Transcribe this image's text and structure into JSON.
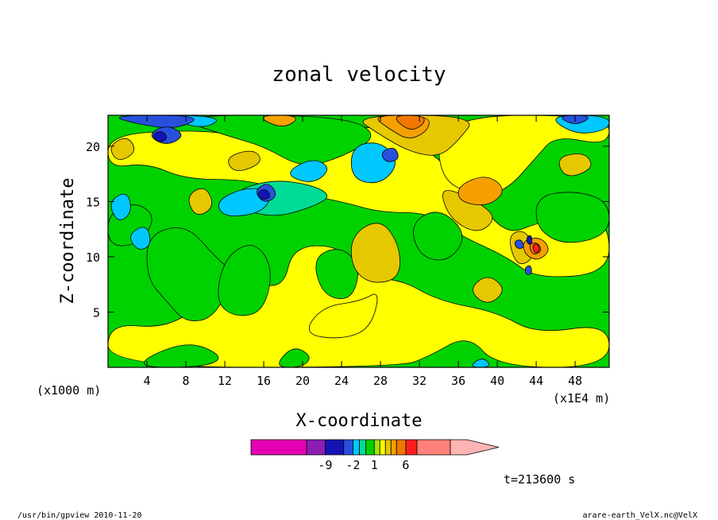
{
  "chart_data": {
    "type": "heatmap",
    "title": "zonal velocity",
    "xlabel": "X-coordinate",
    "ylabel": "Z-coordinate",
    "x_unit_left": "(x1000 m)",
    "x_unit_right": "(x1E4 m)",
    "xticks": [
      "4",
      "8",
      "12",
      "16",
      "20",
      "24",
      "28",
      "32",
      "36",
      "40",
      "44",
      "48"
    ],
    "xtick_values": [
      4,
      8,
      12,
      16,
      20,
      24,
      28,
      32,
      36,
      40,
      44,
      48
    ],
    "yticks": [
      "5",
      "10",
      "15",
      "20"
    ],
    "ytick_values": [
      5,
      10,
      15,
      20
    ],
    "xlim": [
      0,
      51.5
    ],
    "ylim": [
      0,
      22.8
    ],
    "timestamp": "t=213600 s",
    "colorbar": {
      "tick_labels": [
        "-9",
        "-2",
        "1",
        "6"
      ],
      "colors": [
        "#e600b4",
        "#8c1eb4",
        "#1414b4",
        "#2850dc",
        "#00c8ff",
        "#00dc96",
        "#00d200",
        "#a0e600",
        "#ffff00",
        "#e6c800",
        "#f5a000",
        "#f07800",
        "#ff1e1e",
        "#ff8078",
        "#ffb4b4"
      ],
      "segment_units": [
        3,
        1,
        1,
        0.5,
        0.35,
        0.35,
        0.45,
        0.3,
        0.3,
        0.3,
        0.3,
        0.5,
        0.6,
        1.8,
        0.9
      ]
    },
    "background_level": "#00d200",
    "regions": [
      {
        "color": "#ffff00",
        "points": [
          [
            0,
            4
          ],
          [
            6,
            3.5
          ],
          [
            10,
            6
          ],
          [
            14,
            8
          ],
          [
            18,
            7
          ],
          [
            19,
            11
          ],
          [
            24,
            11
          ],
          [
            26,
            8
          ],
          [
            30,
            8
          ],
          [
            34,
            6
          ],
          [
            40,
            5
          ],
          [
            44,
            3
          ],
          [
            51.5,
            4
          ],
          [
            51.5,
            0
          ],
          [
            40,
            0
          ],
          [
            37,
            3
          ],
          [
            33,
            1
          ],
          [
            30,
            0
          ],
          [
            0,
            0
          ]
        ]
      },
      {
        "color": "#ffff00",
        "points": [
          [
            0,
            18
          ],
          [
            4,
            18.5
          ],
          [
            8,
            17
          ],
          [
            14,
            17
          ],
          [
            18,
            16
          ],
          [
            24,
            15
          ],
          [
            28,
            14
          ],
          [
            33,
            14
          ],
          [
            36,
            12
          ],
          [
            41,
            10
          ],
          [
            44,
            8
          ],
          [
            51.5,
            8.5
          ],
          [
            51.5,
            13
          ],
          [
            48,
            14
          ],
          [
            44,
            13
          ],
          [
            41,
            12
          ],
          [
            38,
            15
          ],
          [
            34,
            19
          ],
          [
            30,
            21
          ],
          [
            26,
            22
          ],
          [
            20,
            20.5
          ],
          [
            14,
            21
          ],
          [
            8,
            21.5
          ],
          [
            0,
            21
          ]
        ]
      },
      {
        "color": "#ffff00",
        "points": [
          [
            20,
            3
          ],
          [
            24,
            2.5
          ],
          [
            27,
            3.5
          ],
          [
            28,
            7
          ],
          [
            26,
            6
          ],
          [
            22,
            5.5
          ]
        ]
      },
      {
        "color": "#ffff00",
        "points": [
          [
            34,
            17
          ],
          [
            38,
            15.5
          ],
          [
            41,
            16
          ],
          [
            44,
            19
          ],
          [
            46,
            21
          ],
          [
            51.5,
            20
          ],
          [
            51.5,
            22.8
          ],
          [
            34,
            22.8
          ]
        ]
      },
      {
        "color": "#00d200",
        "points": [
          [
            4,
            12
          ],
          [
            8,
            13
          ],
          [
            11,
            10
          ],
          [
            13,
            8.5
          ],
          [
            11,
            4.5
          ],
          [
            8,
            4
          ],
          [
            6,
            6
          ],
          [
            4,
            8
          ]
        ]
      },
      {
        "color": "#00d200",
        "points": [
          [
            12,
            10
          ],
          [
            15,
            11.5
          ],
          [
            17,
            9
          ],
          [
            16,
            5
          ],
          [
            13,
            4.5
          ],
          [
            11,
            6
          ]
        ]
      },
      {
        "color": "#00d200",
        "points": [
          [
            21,
            10
          ],
          [
            24,
            11
          ],
          [
            26,
            9
          ],
          [
            25,
            6
          ],
          [
            22,
            6.5
          ]
        ]
      },
      {
        "color": "#00d200",
        "points": [
          [
            2,
            0
          ],
          [
            8,
            2.5
          ],
          [
            12,
            1
          ],
          [
            10,
            0
          ]
        ]
      },
      {
        "color": "#00d200",
        "points": [
          [
            17,
            0
          ],
          [
            19,
            2
          ],
          [
            21,
            1
          ],
          [
            20,
            0
          ]
        ]
      },
      {
        "color": "#00d200",
        "points": [
          [
            31,
            13
          ],
          [
            34,
            14.5
          ],
          [
            37,
            12
          ],
          [
            35,
            9.5
          ],
          [
            32,
            10
          ]
        ]
      },
      {
        "color": "#00d200",
        "points": [
          [
            0,
            14
          ],
          [
            3,
            15
          ],
          [
            5,
            13.5
          ],
          [
            3,
            11
          ],
          [
            0,
            11
          ]
        ]
      },
      {
        "color": "#00d200",
        "points": [
          [
            44,
            15.5
          ],
          [
            48,
            16
          ],
          [
            51.5,
            15
          ],
          [
            51.5,
            12
          ],
          [
            47,
            11
          ],
          [
            44,
            12.5
          ]
        ]
      },
      {
        "color": "#00d200",
        "points": [
          [
            6,
            22.8
          ],
          [
            12,
            21
          ],
          [
            16,
            20
          ],
          [
            20,
            18
          ],
          [
            24,
            19
          ],
          [
            28,
            21
          ],
          [
            24,
            22.8
          ]
        ]
      },
      {
        "color": "#00dc96",
        "points": [
          [
            13,
            16
          ],
          [
            17,
            17
          ],
          [
            21,
            16.5
          ],
          [
            23,
            15.5
          ],
          [
            21,
            14.5
          ],
          [
            17,
            13.5
          ],
          [
            13,
            14.5
          ]
        ]
      },
      {
        "color": "#e6c800",
        "points": [
          [
            25,
            12
          ],
          [
            28,
            13.5
          ],
          [
            30,
            11
          ],
          [
            30,
            8
          ],
          [
            27,
            7.5
          ],
          [
            25,
            9
          ]
        ]
      },
      {
        "color": "#e6c800",
        "points": [
          [
            34,
            16.5
          ],
          [
            38,
            15
          ],
          [
            40,
            13.5
          ],
          [
            38,
            12
          ],
          [
            35,
            13.5
          ]
        ]
      },
      {
        "color": "#e6c800",
        "points": [
          [
            25,
            22.8
          ],
          [
            28,
            21
          ],
          [
            31,
            19.5
          ],
          [
            34,
            19
          ],
          [
            36,
            20.5
          ],
          [
            38,
            22.8
          ]
        ]
      },
      {
        "color": "#e6c800",
        "points": [
          [
            8,
            15.5
          ],
          [
            10,
            16.5
          ],
          [
            11,
            14.5
          ],
          [
            9,
            13.5
          ]
        ]
      },
      {
        "color": "#e6c800",
        "points": [
          [
            12,
            19
          ],
          [
            15,
            19.8
          ],
          [
            16,
            18.5
          ],
          [
            13,
            17.5
          ]
        ]
      },
      {
        "color": "#e6c800",
        "points": [
          [
            46,
            19
          ],
          [
            49,
            19.5
          ],
          [
            50,
            18
          ],
          [
            47,
            17
          ]
        ]
      },
      {
        "color": "#e6c800",
        "points": [
          [
            0,
            20
          ],
          [
            2,
            21
          ],
          [
            3,
            19.5
          ],
          [
            1,
            18.5
          ]
        ]
      },
      {
        "color": "#e6c800",
        "points": [
          [
            41,
            12
          ],
          [
            43,
            12.5
          ],
          [
            44,
            10
          ],
          [
            42,
            9
          ]
        ]
      },
      {
        "color": "#e6c800",
        "points": [
          [
            37,
            7
          ],
          [
            39,
            8.5
          ],
          [
            41,
            7
          ],
          [
            39,
            5.5
          ]
        ]
      },
      {
        "color": "#f5a000",
        "points": [
          [
            27,
            22.8
          ],
          [
            29,
            21.5
          ],
          [
            31,
            20.5
          ],
          [
            33,
            21.5
          ],
          [
            33,
            22.8
          ]
        ]
      },
      {
        "color": "#f5a000",
        "points": [
          [
            36,
            16.5
          ],
          [
            39,
            17.5
          ],
          [
            41,
            16
          ],
          [
            39,
            14.5
          ],
          [
            36,
            15
          ]
        ]
      },
      {
        "color": "#f5a000",
        "points": [
          [
            42.6,
            11.5
          ],
          [
            44.5,
            11.8
          ],
          [
            45.5,
            10.6
          ],
          [
            44.2,
            9.6
          ],
          [
            42.8,
            10.2
          ]
        ]
      },
      {
        "color": "#f5a000",
        "points": [
          [
            15,
            22.8
          ],
          [
            18,
            21.5
          ],
          [
            20,
            22.8
          ]
        ]
      },
      {
        "color": "#f07800",
        "points": [
          [
            29,
            22.8
          ],
          [
            31,
            21.3
          ],
          [
            32.5,
            22
          ],
          [
            32.5,
            22.8
          ]
        ]
      },
      {
        "color": "#f07800",
        "points": [
          [
            43.2,
            11.2
          ],
          [
            44.2,
            11.3
          ],
          [
            44.6,
            10.5
          ],
          [
            43.6,
            10.1
          ]
        ]
      },
      {
        "color": "#00c8ff",
        "points": [
          [
            0,
            22.8
          ],
          [
            6,
            22.5
          ],
          [
            10,
            21.5
          ],
          [
            12,
            22.8
          ]
        ]
      },
      {
        "color": "#00c8ff",
        "points": [
          [
            11,
            15
          ],
          [
            14,
            16.3
          ],
          [
            17,
            16
          ],
          [
            16,
            14
          ],
          [
            12,
            13.5
          ]
        ]
      },
      {
        "color": "#00c8ff",
        "points": [
          [
            18,
            17.5
          ],
          [
            21,
            19
          ],
          [
            23,
            18
          ],
          [
            21,
            16.5
          ]
        ]
      },
      {
        "color": "#00c8ff",
        "points": [
          [
            25,
            20
          ],
          [
            28,
            20.5
          ],
          [
            30,
            18.5
          ],
          [
            28,
            16.5
          ],
          [
            25,
            17
          ]
        ]
      },
      {
        "color": "#00c8ff",
        "points": [
          [
            0,
            15
          ],
          [
            2,
            16
          ],
          [
            2.5,
            14
          ],
          [
            1,
            13
          ]
        ]
      },
      {
        "color": "#00c8ff",
        "points": [
          [
            45,
            22.8
          ],
          [
            48,
            21
          ],
          [
            51.5,
            21.5
          ],
          [
            51.5,
            22.8
          ]
        ]
      },
      {
        "color": "#00c8ff",
        "points": [
          [
            37,
            0
          ],
          [
            38.5,
            1
          ],
          [
            39.5,
            0
          ]
        ]
      },
      {
        "color": "#00c8ff",
        "points": [
          [
            2,
            12
          ],
          [
            4,
            13
          ],
          [
            4.5,
            11
          ],
          [
            3,
            10.5
          ]
        ]
      },
      {
        "color": "#2850dc",
        "points": [
          [
            0,
            22.8
          ],
          [
            3,
            22
          ],
          [
            7,
            21.5
          ],
          [
            10,
            22.8
          ]
        ]
      },
      {
        "color": "#2850dc",
        "points": [
          [
            4,
            21
          ],
          [
            6,
            22
          ],
          [
            8,
            21
          ],
          [
            6,
            20
          ]
        ]
      },
      {
        "color": "#2850dc",
        "points": [
          [
            15,
            16
          ],
          [
            16.5,
            16.8
          ],
          [
            17.5,
            15.5
          ],
          [
            16,
            14.8
          ]
        ]
      },
      {
        "color": "#2850dc",
        "points": [
          [
            28,
            19.5
          ],
          [
            29.5,
            20
          ],
          [
            30,
            18.8
          ],
          [
            28.5,
            18.5
          ]
        ]
      },
      {
        "color": "#2850dc",
        "points": [
          [
            46,
            22.8
          ],
          [
            48,
            21.8
          ],
          [
            50,
            22.8
          ]
        ]
      },
      {
        "color": "#2850dc",
        "points": [
          [
            41.7,
            11.4
          ],
          [
            42.5,
            11.6
          ],
          [
            42.8,
            10.8
          ],
          [
            42,
            10.7
          ]
        ]
      },
      {
        "color": "#2850dc",
        "points": [
          [
            42.8,
            9.0
          ],
          [
            43.4,
            9.3
          ],
          [
            43.6,
            8.5
          ],
          [
            43,
            8.3
          ]
        ]
      },
      {
        "color": "#1414b4",
        "points": [
          [
            4.5,
            21
          ],
          [
            5.5,
            21.5
          ],
          [
            6.2,
            20.7
          ],
          [
            5.2,
            20.3
          ]
        ]
      },
      {
        "color": "#1414b4",
        "points": [
          [
            15.3,
            15.8
          ],
          [
            16.2,
            16.2
          ],
          [
            16.8,
            15.4
          ],
          [
            15.8,
            15.1
          ]
        ]
      },
      {
        "color": "#1414b4",
        "points": [
          [
            43,
            11.8
          ],
          [
            43.5,
            12
          ],
          [
            43.6,
            11.2
          ],
          [
            43.1,
            11.1
          ]
        ]
      },
      {
        "color": "#ff1e1e",
        "points": [
          [
            43.6,
            11.1
          ],
          [
            44.2,
            11.2
          ],
          [
            44.4,
            10.5
          ],
          [
            43.8,
            10.3
          ]
        ]
      }
    ]
  },
  "footer": {
    "left": "/usr/bin/gpview  2010-11-20",
    "right": "arare-earth_VelX.nc@VelX"
  }
}
